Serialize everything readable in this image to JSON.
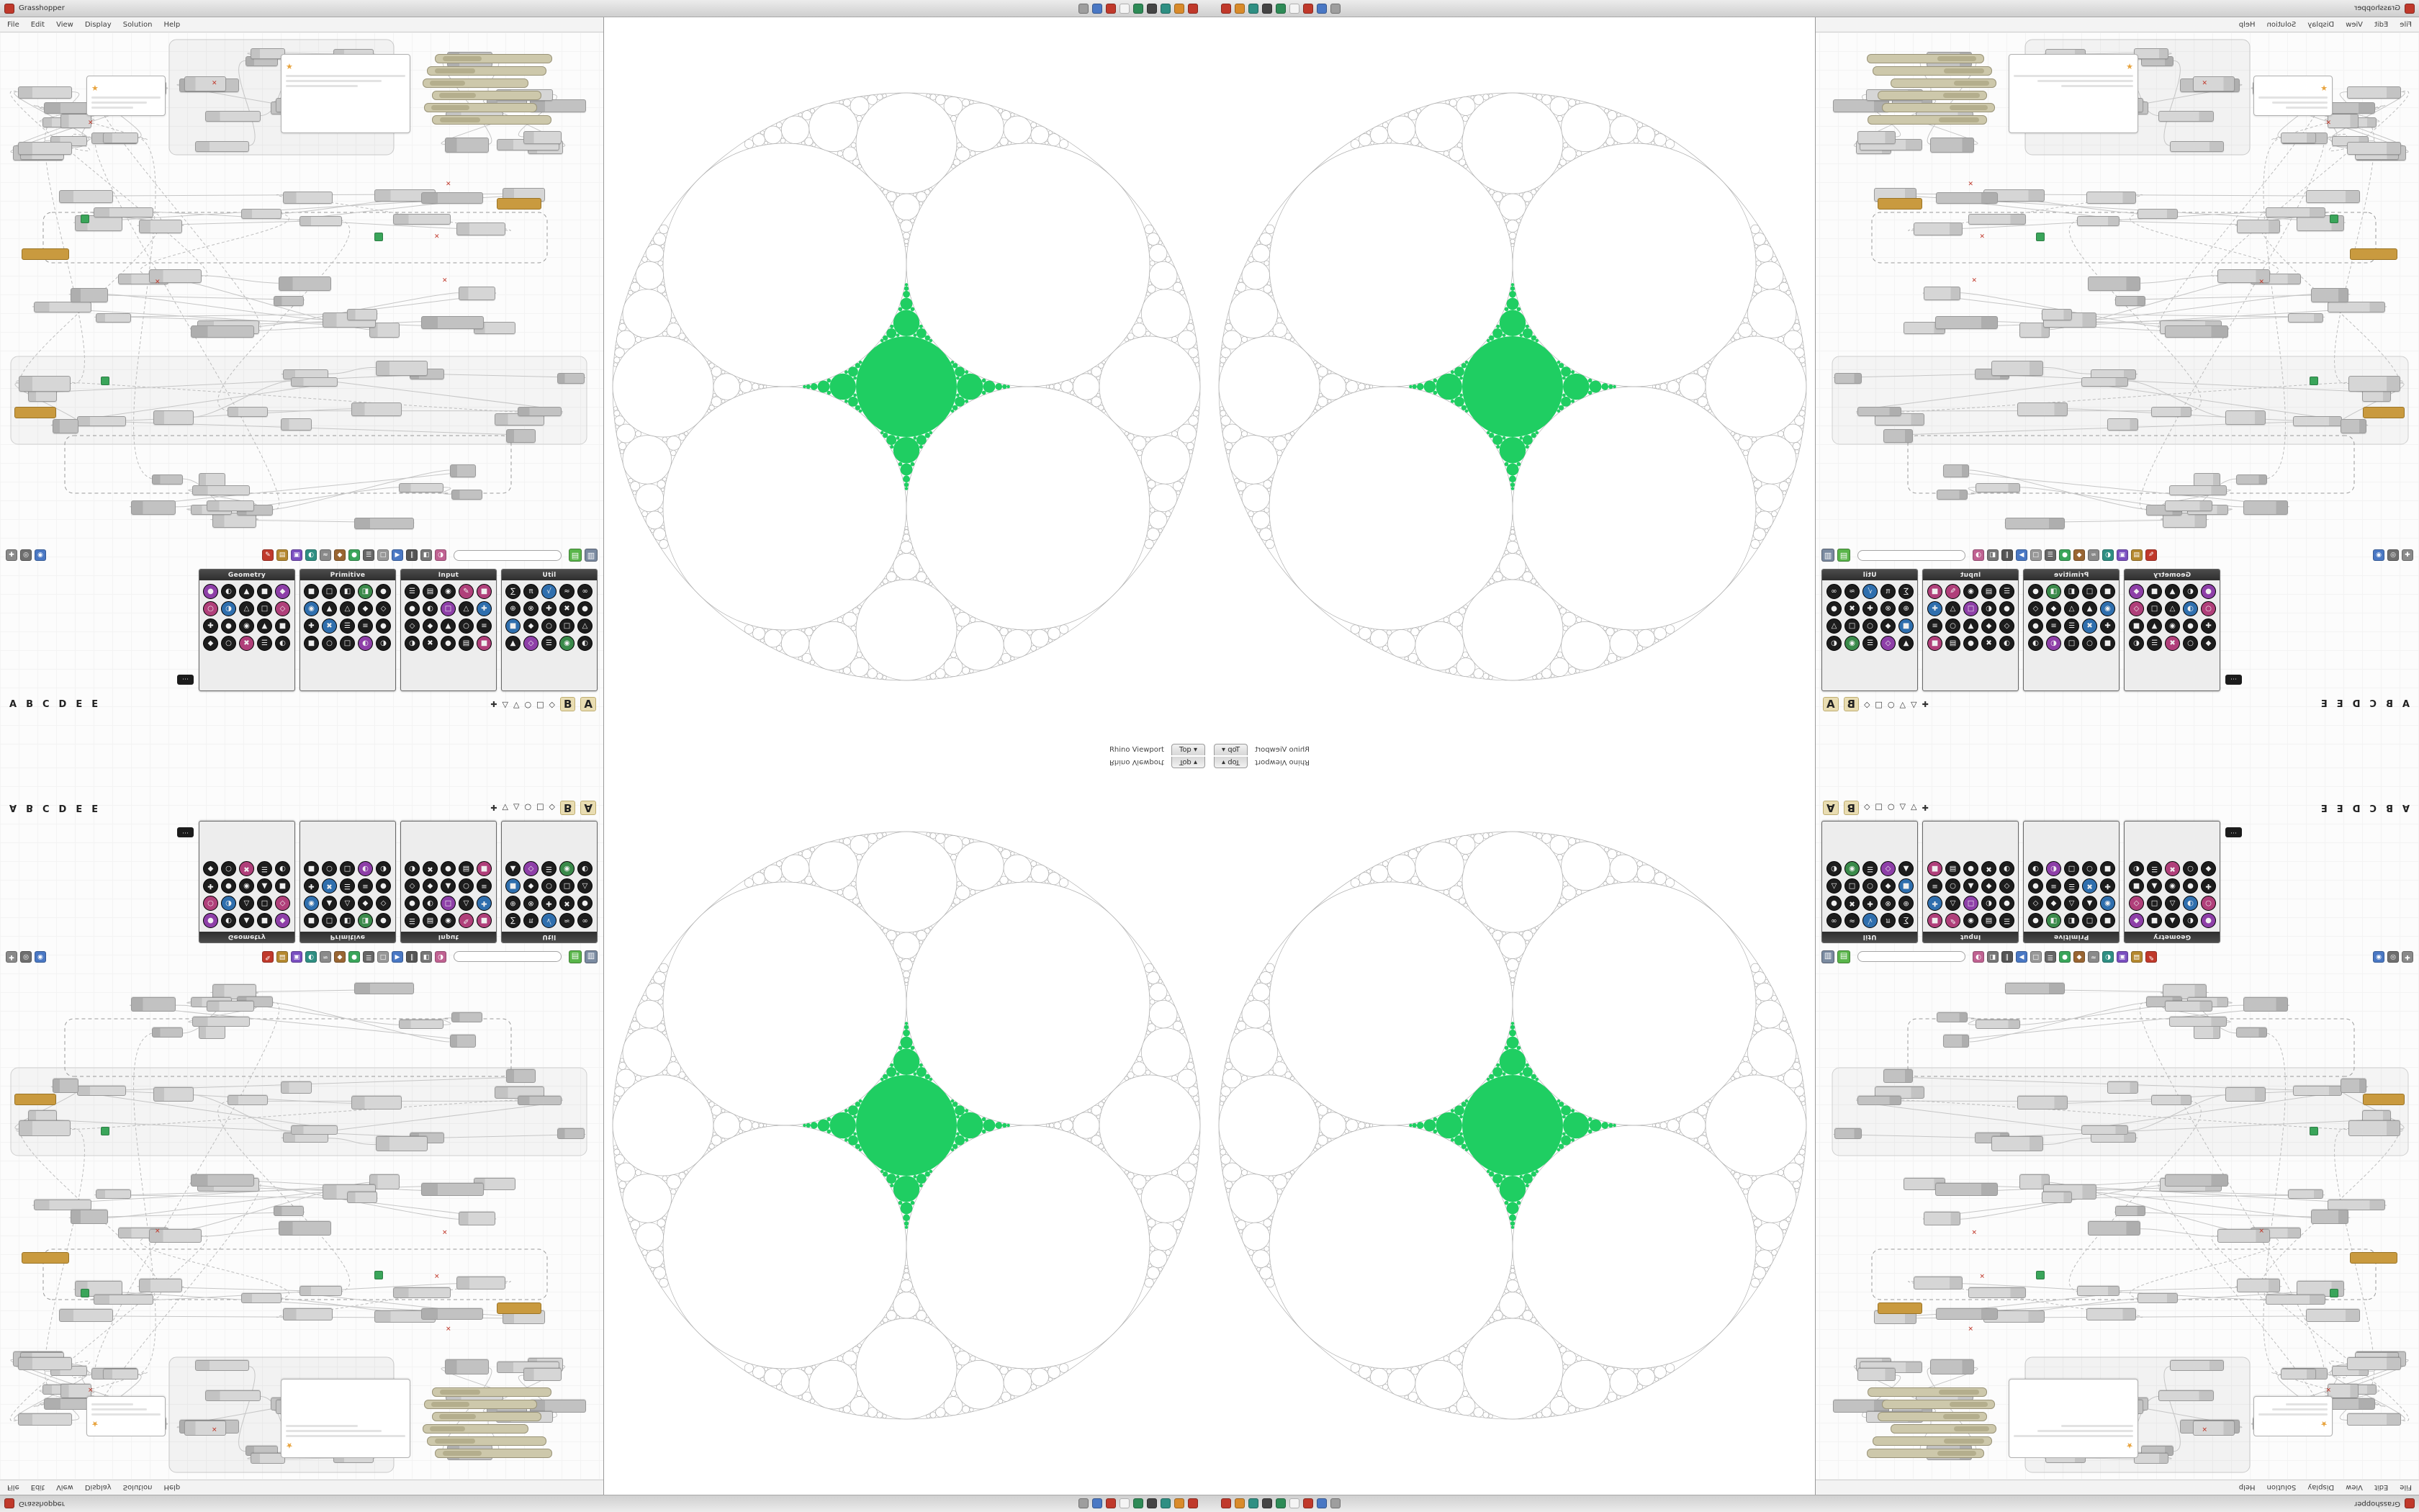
{
  "window": {
    "title": "Grasshopper"
  },
  "taskbar": {
    "icons": [
      {
        "name": "app-gray-icon",
        "color": "#9e9e9e"
      },
      {
        "name": "app-blue-icon",
        "color": "#4a78c4"
      },
      {
        "name": "app-red-icon",
        "color": "#c0392b"
      },
      {
        "name": "app-white-icon",
        "color": "#f4f4f4"
      },
      {
        "name": "app-green-icon",
        "color": "#2e8b57"
      },
      {
        "name": "app-dark-icon",
        "color": "#454545"
      },
      {
        "name": "app-teal-icon",
        "color": "#2f8f83"
      },
      {
        "name": "app-orange-icon",
        "color": "#d98b2b"
      },
      {
        "name": "app-red2-icon",
        "color": "#c0392b"
      }
    ]
  },
  "menu": {
    "items": [
      "File",
      "Edit",
      "View",
      "Display",
      "Solution",
      "Help"
    ]
  },
  "viewport": {
    "title": "Rhino Viewport",
    "tab": "Top",
    "arrow": "▾"
  },
  "palette": {
    "groups": [
      {
        "label": "Geometry",
        "icons": [
          "●",
          "◐",
          "▲",
          "■",
          "◆",
          "○",
          "◑",
          "△",
          "□",
          "◇",
          "✚",
          "●",
          "◉",
          "▲",
          "■",
          "◆",
          "○",
          "✖",
          "☰",
          "◐"
        ]
      },
      {
        "label": "Primitive",
        "icons": [
          "■",
          "□",
          "◧",
          "◨",
          "●",
          "◉",
          "▲",
          "△",
          "◆",
          "◇",
          "✚",
          "✖",
          "☰",
          "≡",
          "●",
          "■",
          "○",
          "□",
          "◐",
          "◑"
        ]
      },
      {
        "label": "Input",
        "icons": [
          "☰",
          "▤",
          "◉",
          "✎",
          "■",
          "●",
          "◐",
          "□",
          "△",
          "✚",
          "◇",
          "◆",
          "▲",
          "○",
          "≡",
          "◑",
          "✖",
          "●",
          "▤",
          "■"
        ]
      },
      {
        "label": "Util",
        "icons": [
          "∑",
          "π",
          "√",
          "≈",
          "∞",
          "⊕",
          "⊗",
          "✚",
          "✖",
          "●",
          "■",
          "◆",
          "○",
          "□",
          "△",
          "▲",
          "◇",
          "☰",
          "◉",
          "◐"
        ]
      }
    ]
  },
  "tabs": {
    "letters": [
      "A",
      "B",
      "C",
      "D",
      "E",
      "E"
    ],
    "shapes": [
      "✚",
      "▽",
      "△",
      "○",
      "□",
      "◇"
    ],
    "emphasis": [
      "B",
      "A"
    ],
    "tip": "⋯"
  },
  "toolbar": {
    "search_value": "",
    "left_icons": [
      {
        "name": "pan-icon",
        "color": "#8a8a8a",
        "glyph": "✚"
      },
      {
        "name": "zoom-icon",
        "color": "#6f6f6f",
        "glyph": "◎"
      },
      {
        "name": "eye-icon",
        "color": "#4a78c4",
        "glyph": "◉"
      }
    ],
    "icons": [
      {
        "name": "sketch-icon",
        "color": "#c0392b",
        "glyph": "✎"
      },
      {
        "name": "note-icon",
        "color": "#b5892f",
        "glyph": "▤"
      },
      {
        "name": "group-icon",
        "color": "#7a4fc0",
        "glyph": "▣"
      },
      {
        "name": "cluster-icon",
        "color": "#2f8f83",
        "glyph": "◐"
      },
      {
        "name": "wire-icon",
        "color": "#8a8a8a",
        "glyph": "≈"
      },
      {
        "name": "bake-icon",
        "color": "#996633",
        "glyph": "◆"
      },
      {
        "name": "preview-icon",
        "color": "#3aa55a",
        "glyph": "●"
      },
      {
        "name": "settings-icon",
        "color": "#666666",
        "glyph": "☰"
      },
      {
        "name": "grid-icon",
        "color": "#999999",
        "glyph": "□"
      },
      {
        "name": "solver-icon",
        "color": "#4a78c4",
        "glyph": "▶"
      },
      {
        "name": "pause-icon",
        "color": "#555555",
        "glyph": "∥"
      },
      {
        "name": "camera-icon",
        "color": "#777777",
        "glyph": "◧"
      },
      {
        "name": "color-icon",
        "color": "#c06292",
        "glyph": "◑"
      }
    ],
    "right_icons": [
      {
        "name": "file-green-icon",
        "color": "#59b54a",
        "glyph": "▤"
      },
      {
        "name": "file-blue-icon",
        "color": "#7a8aa0",
        "glyph": "▥"
      }
    ]
  },
  "colors": {
    "green": "#1fce62",
    "circle_stroke": "#b3b3b3",
    "wire": "#c6c6c6",
    "node": "#d2d2d2",
    "accent_orange": "#c99a3f",
    "error_red": "#c0392b"
  }
}
